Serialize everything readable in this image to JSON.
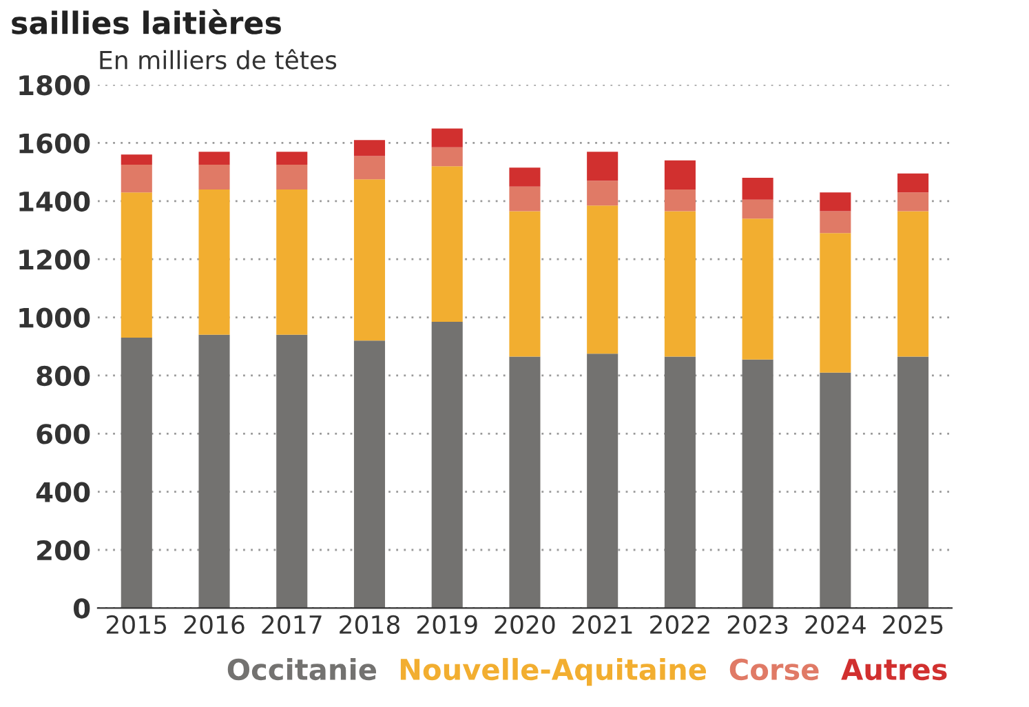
{
  "chart_data": {
    "type": "bar",
    "title": "saillies laitières",
    "ylabel": "En milliers de têtes",
    "categories": [
      "2015",
      "2016",
      "2017",
      "2018",
      "2019",
      "2020",
      "2021",
      "2022",
      "2023",
      "2024",
      "2025"
    ],
    "stacked": true,
    "series": [
      {
        "name": "Occitanie",
        "color": "#737270",
        "values": [
          930,
          940,
          940,
          920,
          985,
          865,
          875,
          865,
          855,
          810,
          865
        ]
      },
      {
        "name": "Nouvelle-Aquitaine",
        "color": "#f2ae30",
        "values": [
          500,
          500,
          500,
          555,
          535,
          500,
          510,
          500,
          485,
          480,
          500
        ]
      },
      {
        "name": "Corse",
        "color": "#e07a66",
        "values": [
          95,
          85,
          85,
          80,
          65,
          85,
          85,
          75,
          65,
          75,
          65
        ]
      },
      {
        "name": "Autres",
        "color": "#d1302f",
        "values": [
          35,
          45,
          45,
          55,
          65,
          65,
          100,
          100,
          75,
          65,
          65
        ]
      }
    ],
    "ylim": [
      0,
      1800
    ],
    "yticks": [
      0,
      200,
      400,
      600,
      800,
      1000,
      1200,
      1400,
      1600,
      1800
    ],
    "grid": "y",
    "legend": "bottom"
  }
}
